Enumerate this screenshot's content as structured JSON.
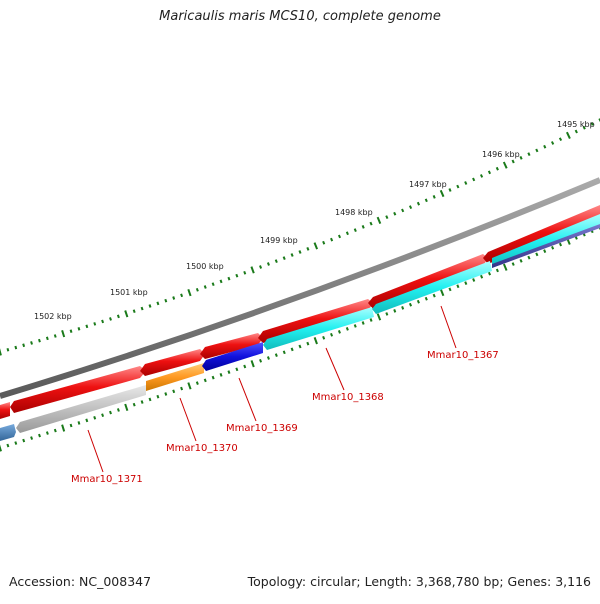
{
  "title": "Maricaulis maris MCS10, complete genome",
  "footer": {
    "accession": "Accession: NC_008347",
    "summary": "Topology: circular; Length: 3,368,780 bp; Genes: 3,116"
  },
  "scale_labels": [
    "1495 kbp",
    "1496 kbp",
    "1497 kbp",
    "1498 kbp",
    "1499 kbp",
    "1500 kbp",
    "1501 kbp",
    "1502 kbp"
  ],
  "gene_labels": [
    "Mmar10_1367",
    "Mmar10_1368",
    "Mmar10_1369",
    "Mmar10_1370",
    "Mmar10_1371"
  ],
  "colors": {
    "backbone": "#808080",
    "forward_cds": "#ee1111",
    "cyan_cds": "#22f0f0",
    "blue_cds": "#1111dd",
    "orange_cds": "#ff9922",
    "gray_cds": "#c0c0c0",
    "steel_cds": "#4477aa",
    "navy_cds": "#4444aa",
    "ticks": "#1a7a1a",
    "gene_label": "#cc0000",
    "scale_label": "#222222"
  }
}
